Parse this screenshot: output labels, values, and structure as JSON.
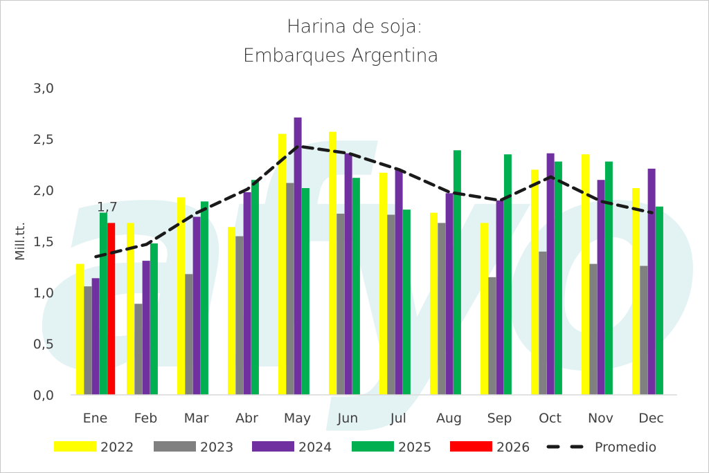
{
  "chart_data": {
    "type": "bar",
    "title": [
      "Harina de soja:",
      "Embarques Argentina"
    ],
    "xlabel": "",
    "ylabel": "Mill.tt.",
    "ylim": [
      0,
      3.0
    ],
    "yticks": [
      "0,0",
      "0,5",
      "1,0",
      "1,5",
      "2,0",
      "2,5",
      "3,0"
    ],
    "ytick_values": [
      0,
      0.5,
      1.0,
      1.5,
      2.0,
      2.5,
      3.0
    ],
    "grid": false,
    "legend_position": "bottom",
    "watermark": "afyo",
    "categories": [
      "Ene",
      "Feb",
      "Mar",
      "Abr",
      "May",
      "Jun",
      "Jul",
      "Aug",
      "Sep",
      "Oct",
      "Nov",
      "Dec"
    ],
    "series": [
      {
        "name": "2022",
        "color": "#ffff00",
        "values": [
          1.28,
          1.68,
          1.93,
          1.64,
          2.55,
          2.57,
          2.17,
          1.78,
          1.68,
          2.2,
          2.35,
          2.02
        ]
      },
      {
        "name": "2023",
        "color": "#808080",
        "values": [
          1.06,
          0.89,
          1.18,
          1.55,
          2.07,
          1.77,
          1.76,
          1.68,
          1.15,
          1.4,
          1.28,
          1.26
        ]
      },
      {
        "name": "2024",
        "color": "#7030a0",
        "values": [
          1.14,
          1.31,
          1.74,
          1.98,
          2.71,
          2.36,
          2.2,
          1.97,
          1.9,
          2.36,
          2.1,
          2.21
        ]
      },
      {
        "name": "2025",
        "color": "#00b050",
        "values": [
          1.78,
          1.48,
          1.89,
          2.1,
          2.02,
          2.12,
          1.81,
          2.39,
          2.35,
          2.28,
          2.28,
          1.84
        ]
      },
      {
        "name": "2026",
        "color": "#ff0000",
        "values": [
          1.68,
          null,
          null,
          null,
          null,
          null,
          null,
          null,
          null,
          null,
          null,
          null
        ]
      }
    ],
    "line_series": {
      "name": "Promedio",
      "color": "#1a1a1a",
      "style": "dashed",
      "values": [
        1.35,
        1.47,
        1.78,
        2.01,
        2.43,
        2.36,
        2.2,
        1.98,
        1.9,
        2.13,
        1.89,
        1.78
      ]
    },
    "annotations": [
      {
        "series": "2026",
        "category": "Ene",
        "text": "1,7"
      }
    ]
  }
}
